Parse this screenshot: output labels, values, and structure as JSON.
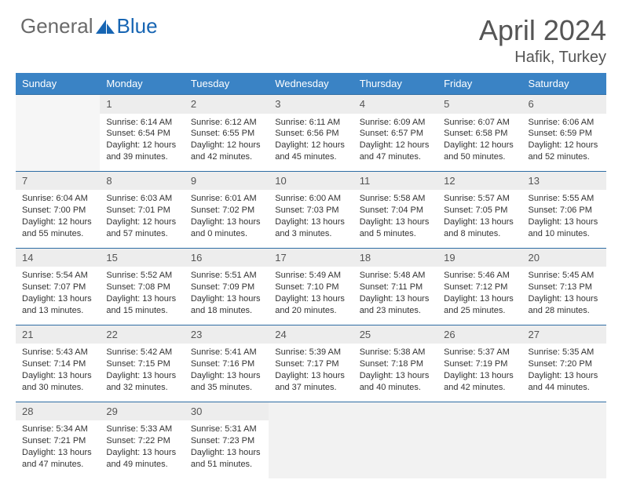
{
  "logo": {
    "text1": "General",
    "text2": "Blue",
    "color1": "#6a6a6a",
    "color2": "#1765b3"
  },
  "title": "April 2024",
  "location": "Hafik, Turkey",
  "headers": [
    "Sunday",
    "Monday",
    "Tuesday",
    "Wednesday",
    "Thursday",
    "Friday",
    "Saturday"
  ],
  "header_bg": "#3a83c5",
  "header_fg": "#ffffff",
  "daynum_bg": "#ededed",
  "rule_color": "#2e6da4",
  "body_fontsize": 11,
  "weeks": [
    [
      null,
      {
        "n": "1",
        "sr": "6:14 AM",
        "ss": "6:54 PM",
        "dl": "12 hours and 39 minutes."
      },
      {
        "n": "2",
        "sr": "6:12 AM",
        "ss": "6:55 PM",
        "dl": "12 hours and 42 minutes."
      },
      {
        "n": "3",
        "sr": "6:11 AM",
        "ss": "6:56 PM",
        "dl": "12 hours and 45 minutes."
      },
      {
        "n": "4",
        "sr": "6:09 AM",
        "ss": "6:57 PM",
        "dl": "12 hours and 47 minutes."
      },
      {
        "n": "5",
        "sr": "6:07 AM",
        "ss": "6:58 PM",
        "dl": "12 hours and 50 minutes."
      },
      {
        "n": "6",
        "sr": "6:06 AM",
        "ss": "6:59 PM",
        "dl": "12 hours and 52 minutes."
      }
    ],
    [
      {
        "n": "7",
        "sr": "6:04 AM",
        "ss": "7:00 PM",
        "dl": "12 hours and 55 minutes."
      },
      {
        "n": "8",
        "sr": "6:03 AM",
        "ss": "7:01 PM",
        "dl": "12 hours and 57 minutes."
      },
      {
        "n": "9",
        "sr": "6:01 AM",
        "ss": "7:02 PM",
        "dl": "13 hours and 0 minutes."
      },
      {
        "n": "10",
        "sr": "6:00 AM",
        "ss": "7:03 PM",
        "dl": "13 hours and 3 minutes."
      },
      {
        "n": "11",
        "sr": "5:58 AM",
        "ss": "7:04 PM",
        "dl": "13 hours and 5 minutes."
      },
      {
        "n": "12",
        "sr": "5:57 AM",
        "ss": "7:05 PM",
        "dl": "13 hours and 8 minutes."
      },
      {
        "n": "13",
        "sr": "5:55 AM",
        "ss": "7:06 PM",
        "dl": "13 hours and 10 minutes."
      }
    ],
    [
      {
        "n": "14",
        "sr": "5:54 AM",
        "ss": "7:07 PM",
        "dl": "13 hours and 13 minutes."
      },
      {
        "n": "15",
        "sr": "5:52 AM",
        "ss": "7:08 PM",
        "dl": "13 hours and 15 minutes."
      },
      {
        "n": "16",
        "sr": "5:51 AM",
        "ss": "7:09 PM",
        "dl": "13 hours and 18 minutes."
      },
      {
        "n": "17",
        "sr": "5:49 AM",
        "ss": "7:10 PM",
        "dl": "13 hours and 20 minutes."
      },
      {
        "n": "18",
        "sr": "5:48 AM",
        "ss": "7:11 PM",
        "dl": "13 hours and 23 minutes."
      },
      {
        "n": "19",
        "sr": "5:46 AM",
        "ss": "7:12 PM",
        "dl": "13 hours and 25 minutes."
      },
      {
        "n": "20",
        "sr": "5:45 AM",
        "ss": "7:13 PM",
        "dl": "13 hours and 28 minutes."
      }
    ],
    [
      {
        "n": "21",
        "sr": "5:43 AM",
        "ss": "7:14 PM",
        "dl": "13 hours and 30 minutes."
      },
      {
        "n": "22",
        "sr": "5:42 AM",
        "ss": "7:15 PM",
        "dl": "13 hours and 32 minutes."
      },
      {
        "n": "23",
        "sr": "5:41 AM",
        "ss": "7:16 PM",
        "dl": "13 hours and 35 minutes."
      },
      {
        "n": "24",
        "sr": "5:39 AM",
        "ss": "7:17 PM",
        "dl": "13 hours and 37 minutes."
      },
      {
        "n": "25",
        "sr": "5:38 AM",
        "ss": "7:18 PM",
        "dl": "13 hours and 40 minutes."
      },
      {
        "n": "26",
        "sr": "5:37 AM",
        "ss": "7:19 PM",
        "dl": "13 hours and 42 minutes."
      },
      {
        "n": "27",
        "sr": "5:35 AM",
        "ss": "7:20 PM",
        "dl": "13 hours and 44 minutes."
      }
    ],
    [
      {
        "n": "28",
        "sr": "5:34 AM",
        "ss": "7:21 PM",
        "dl": "13 hours and 47 minutes."
      },
      {
        "n": "29",
        "sr": "5:33 AM",
        "ss": "7:22 PM",
        "dl": "13 hours and 49 minutes."
      },
      {
        "n": "30",
        "sr": "5:31 AM",
        "ss": "7:23 PM",
        "dl": "13 hours and 51 minutes."
      },
      null,
      null,
      null,
      null
    ]
  ]
}
